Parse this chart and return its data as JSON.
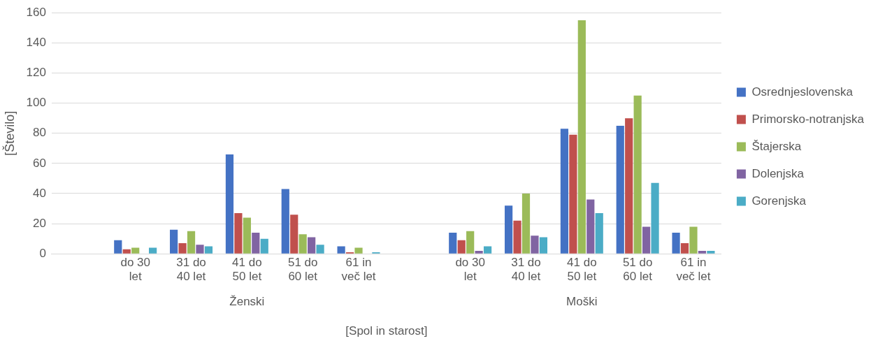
{
  "chart_data": {
    "type": "bar",
    "ylabel": "[Število]",
    "xlabel": "[Spol in starost]",
    "categories": [
      null,
      "do 30 let",
      "31 do 40 let",
      "41 do 50 let",
      "51 do 60 let",
      "61 in več let",
      null,
      "do 30 let",
      "31 do 40 let",
      "41 do 50 let",
      "51 do 60 let",
      "61 in več let"
    ],
    "annotations": [
      "Ženski",
      "Moški"
    ],
    "series": [
      {
        "name": "Osrednjeslovenska",
        "color": "#4472c4",
        "values": [
          null,
          9,
          16,
          66,
          43,
          5,
          null,
          14,
          32,
          83,
          85,
          14
        ]
      },
      {
        "name": "Primorsko-notranjska",
        "color": "#c0504d",
        "values": [
          null,
          3,
          7,
          27,
          26,
          1,
          null,
          9,
          22,
          79,
          90,
          7
        ]
      },
      {
        "name": "Štajerska",
        "color": "#9bbb59",
        "values": [
          null,
          4,
          15,
          24,
          13,
          4,
          null,
          15,
          40,
          155,
          105,
          18
        ]
      },
      {
        "name": "Dolenjska",
        "color": "#8064a2",
        "values": [
          null,
          0,
          6,
          14,
          11,
          0,
          null,
          2,
          12,
          36,
          18,
          2
        ]
      },
      {
        "name": "Gorenjska",
        "color": "#4bacc6",
        "values": [
          null,
          4,
          5,
          10,
          6,
          1,
          null,
          5,
          11,
          27,
          47,
          2
        ]
      }
    ],
    "ylim": [
      0,
      160
    ],
    "yticks": [
      0,
      20,
      40,
      60,
      80,
      100,
      120,
      140,
      160
    ],
    "grid": "y",
    "legend": "right"
  }
}
